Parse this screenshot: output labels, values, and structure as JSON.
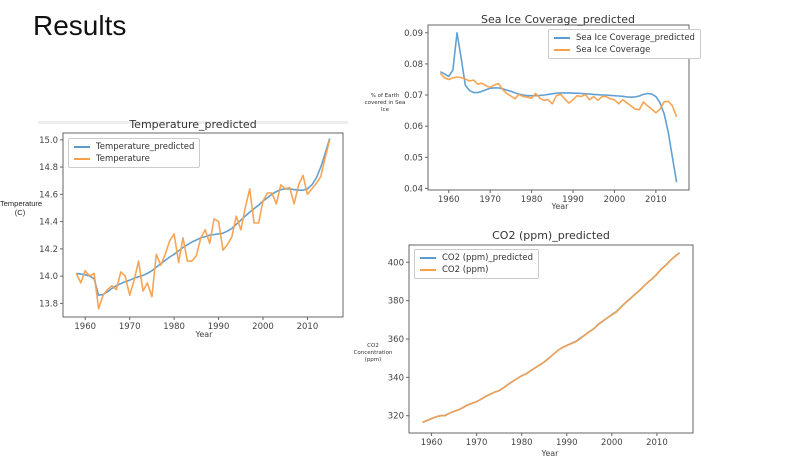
{
  "heading": "Results",
  "colors": {
    "predicted": "#5b9bd0",
    "actual": "#f7a04c"
  },
  "chart_data": [
    {
      "type": "line",
      "title": "Temperature_predicted",
      "xlabel": "Year",
      "ylabel": "Temperature (C)",
      "xlim": [
        1955,
        2018
      ],
      "ylim": [
        13.7,
        15.05
      ],
      "xticks": [
        1960,
        1970,
        1980,
        1990,
        2000,
        2010
      ],
      "yticks": [
        13.8,
        14.0,
        14.2,
        14.4,
        14.6,
        14.8,
        15.0
      ],
      "ytick_labels": [
        "13.8",
        "14.0",
        "14.2",
        "14.4",
        "14.6",
        "14.8",
        "15.0"
      ],
      "legend": "upper-left",
      "grid": false,
      "x": [
        1958,
        1959,
        1960,
        1961,
        1962,
        1963,
        1964,
        1965,
        1966,
        1967,
        1968,
        1969,
        1970,
        1971,
        1972,
        1973,
        1974,
        1975,
        1976,
        1977,
        1978,
        1979,
        1980,
        1981,
        1982,
        1983,
        1984,
        1985,
        1986,
        1987,
        1988,
        1989,
        1990,
        1991,
        1992,
        1993,
        1994,
        1995,
        1996,
        1997,
        1998,
        1999,
        2000,
        2001,
        2002,
        2003,
        2004,
        2005,
        2006,
        2007,
        2008,
        2009,
        2010,
        2011,
        2012,
        2013,
        2014,
        2015
      ],
      "series": [
        {
          "name": "Temperature_predicted",
          "color": "#5b9bd0",
          "values": [
            14.02,
            14.015,
            14.01,
            14.0,
            13.98,
            13.86,
            13.865,
            13.885,
            13.91,
            13.93,
            13.945,
            13.96,
            13.97,
            13.985,
            13.995,
            14.005,
            14.02,
            14.04,
            14.065,
            14.09,
            14.115,
            14.14,
            14.16,
            14.185,
            14.21,
            14.23,
            14.25,
            14.265,
            14.28,
            14.29,
            14.3,
            14.305,
            14.31,
            14.315,
            14.33,
            14.35,
            14.38,
            14.41,
            14.44,
            14.47,
            14.495,
            14.52,
            14.55,
            14.575,
            14.6,
            14.62,
            14.635,
            14.64,
            14.64,
            14.635,
            14.63,
            14.63,
            14.64,
            14.67,
            14.72,
            14.8,
            14.9,
            15.01
          ]
        },
        {
          "name": "Temperature",
          "color": "#f7a04c",
          "values": [
            14.02,
            13.95,
            14.04,
            14.0,
            14.02,
            13.76,
            13.86,
            13.9,
            13.93,
            13.9,
            14.03,
            14.0,
            13.86,
            13.97,
            14.11,
            13.89,
            13.95,
            13.85,
            14.16,
            14.08,
            14.16,
            14.26,
            14.31,
            14.1,
            14.28,
            14.11,
            14.11,
            14.15,
            14.28,
            14.34,
            14.24,
            14.42,
            14.4,
            14.19,
            14.23,
            14.29,
            14.44,
            14.34,
            14.5,
            14.64,
            14.39,
            14.39,
            14.55,
            14.61,
            14.61,
            14.53,
            14.67,
            14.64,
            14.65,
            14.53,
            14.67,
            14.74,
            14.6,
            14.64,
            14.68,
            14.73,
            14.87,
            15.0
          ]
        }
      ]
    },
    {
      "type": "line",
      "title": "Sea Ice Coverage_predicted",
      "xlabel": "Year",
      "ylabel": "% of Earth covered in Sea Ice",
      "xlim": [
        1955,
        2018
      ],
      "ylim": [
        0.0395,
        0.0925
      ],
      "xticks": [
        1960,
        1970,
        1980,
        1990,
        2000,
        2010
      ],
      "yticks": [
        0.04,
        0.05,
        0.06,
        0.07,
        0.08,
        0.09
      ],
      "ytick_labels": [
        "0.04",
        "0.05",
        "0.06",
        "0.07",
        "0.08",
        "0.09"
      ],
      "legend": "upper-right",
      "grid": false,
      "x": [
        1958,
        1959,
        1960,
        1961,
        1962,
        1963,
        1964,
        1965,
        1966,
        1967,
        1968,
        1969,
        1970,
        1971,
        1972,
        1973,
        1974,
        1975,
        1976,
        1977,
        1978,
        1979,
        1980,
        1981,
        1982,
        1983,
        1984,
        1985,
        1986,
        1987,
        1988,
        1989,
        1990,
        1991,
        1992,
        1993,
        1994,
        1995,
        1996,
        1997,
        1998,
        1999,
        2000,
        2001,
        2002,
        2003,
        2004,
        2005,
        2006,
        2007,
        2008,
        2009,
        2010,
        2011,
        2012,
        2013,
        2014,
        2015
      ],
      "series": [
        {
          "name": "Sea Ice Coverage_predicted",
          "color": "#5b9bd0",
          "values": [
            0.0775,
            0.0768,
            0.076,
            0.078,
            0.09,
            0.082,
            0.0732,
            0.0715,
            0.0708,
            0.0708,
            0.0712,
            0.0717,
            0.0722,
            0.0723,
            0.0723,
            0.072,
            0.0716,
            0.0712,
            0.0707,
            0.0703,
            0.07,
            0.0698,
            0.0698,
            0.0698,
            0.0699,
            0.07,
            0.0702,
            0.0704,
            0.0706,
            0.0707,
            0.0707,
            0.0707,
            0.0706,
            0.0706,
            0.0705,
            0.0704,
            0.0703,
            0.0702,
            0.0701,
            0.07,
            0.07,
            0.0699,
            0.0698,
            0.0697,
            0.0696,
            0.0694,
            0.0693,
            0.0694,
            0.0697,
            0.0702,
            0.0705,
            0.0703,
            0.0695,
            0.0675,
            0.064,
            0.058,
            0.05,
            0.042
          ]
        },
        {
          "name": "Sea Ice Coverage",
          "color": "#f7a04c",
          "values": [
            0.077,
            0.0755,
            0.075,
            0.0755,
            0.0758,
            0.0756,
            0.0752,
            0.0745,
            0.0748,
            0.0735,
            0.0738,
            0.073,
            0.0725,
            0.0732,
            0.0737,
            0.0718,
            0.0705,
            0.0697,
            0.0688,
            0.0702,
            0.0695,
            0.0693,
            0.069,
            0.0705,
            0.069,
            0.0683,
            0.0685,
            0.0672,
            0.0698,
            0.0702,
            0.0688,
            0.0674,
            0.0685,
            0.0698,
            0.0695,
            0.0702,
            0.0685,
            0.0695,
            0.0683,
            0.0695,
            0.0695,
            0.0688,
            0.0685,
            0.0672,
            0.0685,
            0.0675,
            0.0665,
            0.0655,
            0.0653,
            0.0678,
            0.0665,
            0.0655,
            0.0643,
            0.0655,
            0.0678,
            0.068,
            0.0665,
            0.063
          ]
        }
      ]
    },
    {
      "type": "line",
      "title": "CO2 (ppm)_predicted",
      "xlabel": "Year",
      "ylabel": "CO2 Concentration (ppm)",
      "xlim": [
        1955,
        2018
      ],
      "ylim": [
        311,
        409
      ],
      "xticks": [
        1960,
        1970,
        1980,
        1990,
        2000,
        2010
      ],
      "yticks": [
        320,
        340,
        360,
        380,
        400
      ],
      "ytick_labels": [
        "320",
        "340",
        "360",
        "380",
        "400"
      ],
      "legend": "upper-left",
      "grid": false,
      "x": [
        1958,
        1959,
        1960,
        1961,
        1962,
        1963,
        1964,
        1965,
        1966,
        1967,
        1968,
        1969,
        1970,
        1971,
        1972,
        1973,
        1974,
        1975,
        1976,
        1977,
        1978,
        1979,
        1980,
        1981,
        1982,
        1983,
        1984,
        1985,
        1986,
        1987,
        1988,
        1989,
        1990,
        1991,
        1992,
        1993,
        1994,
        1995,
        1996,
        1997,
        1998,
        1999,
        2000,
        2001,
        2002,
        2003,
        2004,
        2005,
        2006,
        2007,
        2008,
        2009,
        2010,
        2011,
        2012,
        2013,
        2014,
        2015
      ],
      "series": [
        {
          "name": "CO2 (ppm)_predicted",
          "color": "#5b9bd0",
          "values": [
            316.5,
            317.5,
            318.5,
            319.4,
            320,
            320.2,
            321.3,
            322.3,
            323.1,
            324.3,
            325.6,
            326.5,
            327.3,
            328.6,
            330.1,
            331.1,
            332.3,
            333.1,
            334.6,
            336.4,
            337.9,
            339.4,
            340.8,
            341.9,
            343.5,
            345,
            346.5,
            348,
            349.9,
            352,
            354,
            355.5,
            356.6,
            357.7,
            358.7,
            360.4,
            362.1,
            363.8,
            365.3,
            367.6,
            369.3,
            371,
            372.7,
            374.3,
            376.6,
            378.9,
            380.9,
            383,
            385,
            387.3,
            389.5,
            391.5,
            393.8,
            396.5,
            398.6,
            401.1,
            403.1,
            405
          ]
        },
        {
          "name": "CO2 (ppm)",
          "color": "#f7a04c",
          "values": [
            316.5,
            317.5,
            318.5,
            319.4,
            320,
            320,
            321.3,
            322.3,
            323.1,
            324.3,
            325.6,
            326.5,
            327.3,
            328.6,
            330.1,
            331.1,
            332.3,
            333.1,
            334.6,
            336.4,
            337.9,
            339.4,
            340.8,
            341.8,
            343.5,
            345,
            346.5,
            348,
            349.9,
            352,
            354,
            355.5,
            356.6,
            357.6,
            358.5,
            360.2,
            362,
            363.8,
            365.3,
            367.8,
            369.4,
            371,
            372.5,
            374,
            376.5,
            378.8,
            380.8,
            383,
            385,
            387.3,
            389.5,
            391.5,
            393.8,
            396.5,
            398.5,
            401,
            403,
            405
          ]
        }
      ]
    }
  ]
}
